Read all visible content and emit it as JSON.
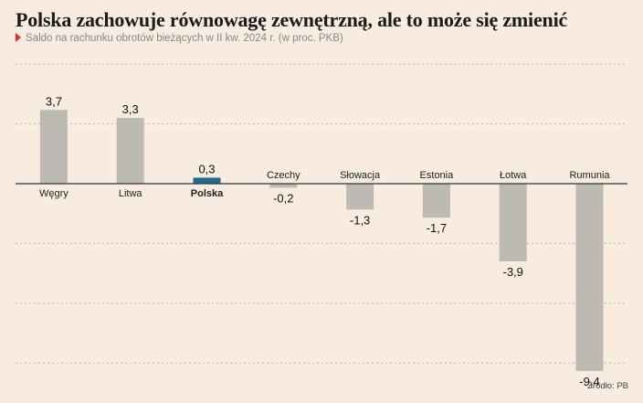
{
  "title": "Polska zachowuje równowagę zewnętrzną, ale to może się zmienić",
  "subtitle": "Saldo na rachunku obrotów bieżących w II kw. 2024 r. (w proc. PKB)",
  "source": "Źródło: PB",
  "colors": {
    "background": "#f8ebe0",
    "bar_default": "#bcbab3",
    "bar_highlight": "#1f6b8e",
    "subtitle_marker": "#e3302f",
    "gridline": "#b9b2aa",
    "zero_line": "#333333"
  },
  "chart_data": {
    "type": "bar",
    "categories": [
      "Węgry",
      "Litwa",
      "Polska",
      "Czechy",
      "Słowacja",
      "Estonia",
      "Łotwa",
      "Rumunia"
    ],
    "values": [
      3.7,
      3.3,
      0.3,
      -0.2,
      -1.3,
      -1.7,
      -3.9,
      -9.4
    ],
    "value_labels": [
      "3,7",
      "3,3",
      "0,3",
      "-0,2",
      "-1,3",
      "-1,7",
      "-3,9",
      "-9,4"
    ],
    "highlight": "Polska",
    "ylim": [
      -9.4,
      6
    ],
    "grid": true,
    "gridline_values": [
      6,
      3,
      -3,
      -6,
      -9
    ],
    "xlabel": "",
    "ylabel": ""
  }
}
